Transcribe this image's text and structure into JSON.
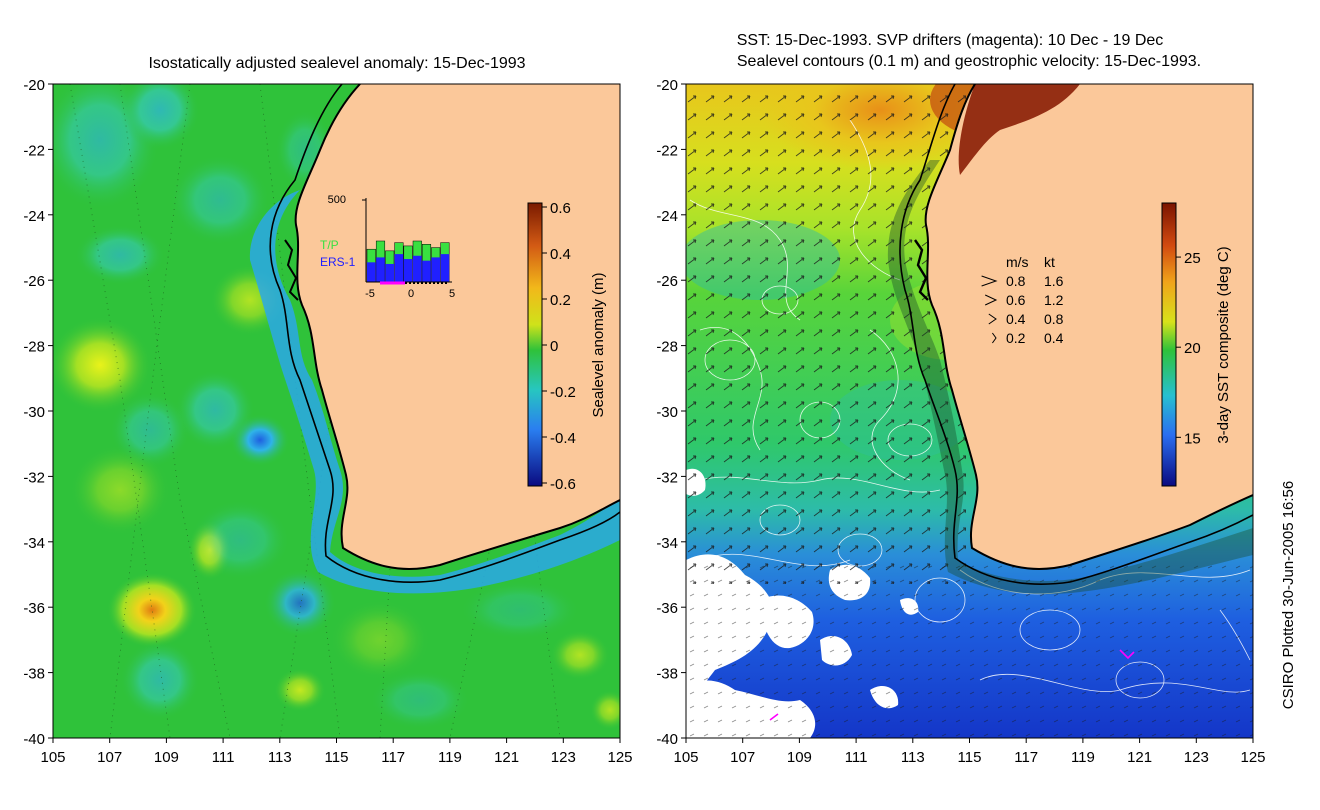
{
  "left_panel": {
    "title": "Isostatically adjusted sealevel anomaly: 15-Dec-1993",
    "lat_ticks": [
      "-20",
      "-22",
      "-24",
      "-26",
      "-28",
      "-30",
      "-32",
      "-34",
      "-36",
      "-38",
      "-40"
    ],
    "lon_ticks": [
      "105",
      "107",
      "109",
      "111",
      "113",
      "115",
      "117",
      "119",
      "121",
      "123",
      "125"
    ],
    "colorbar": {
      "label": "Sealevel anomaly (m)",
      "ticks": [
        "0.6",
        "0.4",
        "0.2",
        "0",
        "-0.2",
        "-0.4",
        "-0.6"
      ]
    },
    "inset": {
      "ymax_label": "500",
      "legend_tp": "T/P",
      "legend_ers": "ERS-1",
      "x_ticks": [
        "-5",
        "0",
        "5"
      ],
      "tp_counts": [
        200,
        250,
        190,
        240,
        220,
        250,
        230,
        210,
        240
      ],
      "ers_counts": [
        120,
        150,
        110,
        170,
        140,
        160,
        130,
        150,
        170
      ]
    }
  },
  "right_panel": {
    "title_line1": "SST: 15-Dec-1993. SVP drifters (magenta): 10 Dec - 19 Dec",
    "title_line2": "Sealevel contours (0.1 m) and geostrophic velocity: 15-Dec-1993.",
    "lat_ticks": [
      "-20",
      "-22",
      "-24",
      "-26",
      "-28",
      "-30",
      "-32",
      "-34",
      "-36",
      "-38",
      "-40"
    ],
    "lon_ticks": [
      "105",
      "107",
      "109",
      "111",
      "113",
      "115",
      "117",
      "119",
      "121",
      "123",
      "125"
    ],
    "colorbar": {
      "label": "3-day SST composite (deg C)",
      "ticks": [
        "25",
        "20",
        "15"
      ]
    },
    "velocity_legend": {
      "header_ms": "m/s",
      "header_kt": "kt",
      "rows": [
        {
          "ms": "0.8",
          "kt": "1.6"
        },
        {
          "ms": "0.6",
          "kt": "1.2"
        },
        {
          "ms": "0.4",
          "kt": "0.8"
        },
        {
          "ms": "0.2",
          "kt": "0.4"
        }
      ]
    }
  },
  "credit": "CSIRO Plotted 30-Jun-2005 16:56",
  "colors": {
    "land": "#fbc89a",
    "coast": "#000000",
    "ocean_green": "#2fc23a",
    "tp_bar": "#39e040",
    "ers_bar": "#2020ff",
    "drifter": "#ff00ff"
  }
}
